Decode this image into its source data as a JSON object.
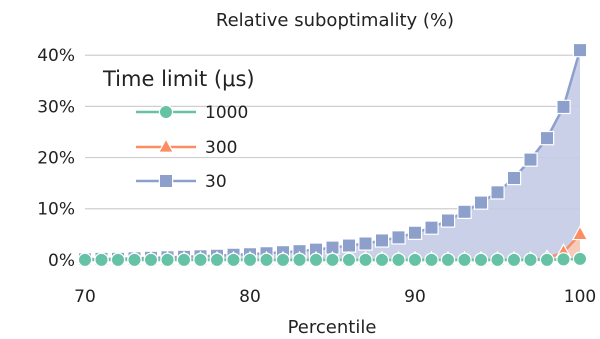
{
  "chart_data": {
    "type": "line",
    "title": "Relative suboptimality (%)",
    "xlabel": "Percentile",
    "ylabel": "",
    "xlim": [
      70,
      100
    ],
    "ylim": [
      -1,
      42
    ],
    "xticks": [
      70,
      80,
      90,
      100
    ],
    "xtick_labels": [
      "70",
      "80",
      "90",
      "100"
    ],
    "yticks": [
      0,
      10,
      20,
      30,
      40
    ],
    "ytick_labels": [
      "0%",
      "10%",
      "20%",
      "30%",
      "40%"
    ],
    "grid": "horizontal",
    "legend": {
      "title": "Time limit (μs)",
      "placement": "top-left"
    },
    "x": [
      70,
      71,
      72,
      73,
      74,
      75,
      76,
      77,
      78,
      79,
      80,
      81,
      82,
      83,
      84,
      85,
      86,
      87,
      88,
      89,
      90,
      91,
      92,
      93,
      94,
      95,
      96,
      97,
      98,
      99,
      100
    ],
    "series": [
      {
        "name": "1000",
        "color": "#66c2a5",
        "marker": "circle",
        "values": [
          0,
          0,
          0,
          0,
          0,
          0,
          0,
          0,
          0,
          0,
          0,
          0,
          0,
          0,
          0,
          0,
          0,
          0,
          0,
          0,
          0,
          0,
          0,
          0,
          0,
          0,
          0,
          0,
          0,
          0.1,
          0.2
        ]
      },
      {
        "name": "300",
        "color": "#fc8d62",
        "marker": "triangle",
        "values": [
          0,
          0,
          0,
          0,
          0,
          0,
          0,
          0,
          0,
          0,
          0,
          0,
          0,
          0,
          0,
          0,
          0,
          0,
          0,
          0,
          0,
          0,
          0,
          0,
          0,
          0,
          0,
          0,
          0.3,
          1.5,
          5.0
        ]
      },
      {
        "name": "30",
        "color": "#8da0cb",
        "marker": "square",
        "values": [
          0.1,
          0.2,
          0.2,
          0.3,
          0.4,
          0.5,
          0.6,
          0.7,
          0.8,
          1.0,
          1.1,
          1.3,
          1.5,
          1.7,
          2.0,
          2.4,
          2.8,
          3.2,
          3.8,
          4.4,
          5.3,
          6.3,
          7.7,
          9.4,
          11.2,
          13.2,
          16.0,
          19.6,
          23.8,
          29.9,
          41.0
        ]
      }
    ]
  }
}
